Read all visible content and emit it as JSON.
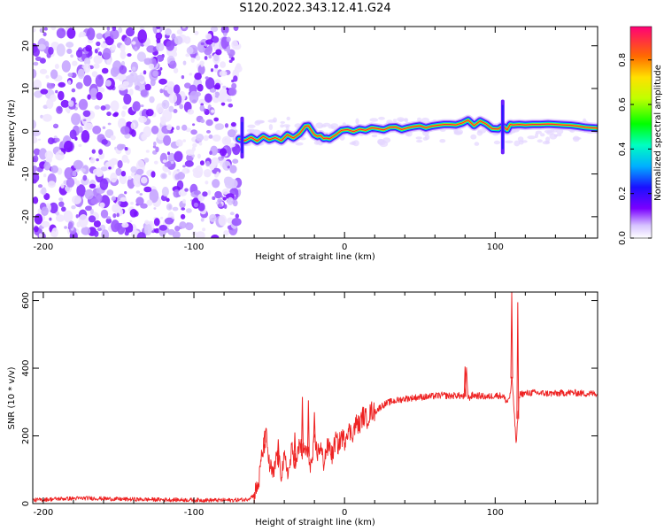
{
  "title": "S120.2022.343.12.41.G24",
  "chart_data": [
    {
      "type": "heatmap",
      "title": "S120.2022.343.12.41.G24",
      "xlabel": "Height of straight line (km)",
      "ylabel": "Frequency (Hz)",
      "xlim": [
        -207,
        168
      ],
      "ylim": [
        -25,
        24.5
      ],
      "xticks": [
        "-200",
        "-100",
        "0",
        "100"
      ],
      "xtick_values": [
        -200,
        -100,
        0,
        100
      ],
      "yticks": [
        "20",
        "10",
        "0",
        "-10",
        "-20"
      ],
      "ytick_values": [
        20,
        10,
        0,
        -10,
        -20
      ],
      "noise_region_x": [
        -207,
        -70
      ],
      "ridge": {
        "x": [
          -70,
          -66,
          -62,
          -58,
          -54,
          -50,
          -46,
          -42,
          -38,
          -34,
          -30,
          -26,
          -24,
          -22,
          -20,
          -18,
          -16,
          -14,
          -12,
          -10,
          -8,
          -6,
          -2,
          2,
          6,
          10,
          14,
          18,
          22,
          26,
          30,
          34,
          38,
          42,
          46,
          50,
          54,
          58,
          62,
          66,
          70,
          74,
          78,
          82,
          86,
          90,
          94,
          98,
          102,
          104,
          106,
          108,
          110,
          112,
          116,
          120,
          125,
          130,
          135,
          140,
          145,
          150,
          155,
          160,
          168
        ],
        "y": [
          -1.8,
          -2.2,
          -1.4,
          -2.3,
          -1.2,
          -2.0,
          -1.5,
          -2.2,
          -0.8,
          -1.6,
          -0.6,
          1.2,
          1.3,
          0.2,
          -0.8,
          -1.2,
          -1.0,
          -1.7,
          -1.6,
          -1.8,
          -1.3,
          -0.9,
          0.2,
          0.4,
          -0.1,
          0.5,
          0.2,
          0.8,
          0.6,
          0.3,
          0.9,
          1.0,
          0.4,
          0.8,
          1.1,
          1.3,
          0.8,
          1.2,
          1.4,
          1.6,
          1.6,
          1.5,
          1.9,
          2.6,
          1.3,
          2.4,
          1.7,
          0.6,
          0.5,
          1.0,
          1.0,
          0.3,
          1.6,
          1.5,
          1.6,
          1.5,
          1.6,
          1.6,
          1.7,
          1.6,
          1.5,
          1.4,
          1.2,
          0.9,
          0.7
        ],
        "peak_amplitude": 0.95
      }
    },
    {
      "type": "line",
      "xlabel": "Height of straight line (km)",
      "ylabel": "SNR (10 * v/v)",
      "xlim": [
        -207,
        168
      ],
      "ylim": [
        0,
        625
      ],
      "xticks": [
        "-200",
        "-100",
        "0",
        "100"
      ],
      "xtick_values": [
        -200,
        -100,
        0,
        100
      ],
      "yticks": [
        "600",
        "400",
        "200",
        "0"
      ],
      "ytick_values": [
        600,
        400,
        200,
        0
      ],
      "color": "#ee2222",
      "series": [
        {
          "x": [
            -207,
            -190,
            -170,
            -150,
            -130,
            -110,
            -90,
            -75,
            -65,
            -60,
            -57,
            -55,
            -52,
            -50,
            -47,
            -45,
            -42,
            -40,
            -37,
            -35,
            -32,
            -30,
            -28,
            -26,
            -24,
            -22,
            -20,
            -18,
            -16,
            -14,
            -12,
            -10,
            -8,
            -6,
            -4,
            -2,
            0,
            2,
            5,
            8,
            10,
            12,
            15,
            18,
            20,
            25,
            30,
            35,
            40,
            45,
            50,
            55,
            60,
            65,
            70,
            75,
            80,
            81,
            82,
            85,
            90,
            95,
            100,
            105,
            108,
            110,
            111,
            112,
            113,
            114,
            115,
            116,
            117,
            120,
            125,
            130,
            140,
            150,
            160,
            168
          ],
          "y": [
            10,
            14,
            16,
            13,
            12,
            11,
            10,
            10,
            12,
            25,
            60,
            140,
            200,
            115,
            80,
            150,
            90,
            130,
            90,
            160,
            110,
            180,
            150,
            160,
            140,
            110,
            180,
            150,
            170,
            120,
            160,
            170,
            140,
            190,
            170,
            200,
            185,
            220,
            205,
            240,
            230,
            260,
            250,
            275,
            270,
            290,
            300,
            305,
            310,
            312,
            315,
            315,
            318,
            320,
            318,
            320,
            315,
            400,
            310,
            320,
            318,
            315,
            320,
            318,
            300,
            320,
            370,
            320,
            240,
            175,
            250,
            320,
            325,
            325,
            328,
            326,
            325,
            328,
            325,
            325
          ]
        }
      ],
      "spikes": [
        {
          "x": -53,
          "y": 215
        },
        {
          "x": -44,
          "y": 190
        },
        {
          "x": -33,
          "y": 210
        },
        {
          "x": -28,
          "y": 315
        },
        {
          "x": -24,
          "y": 305
        },
        {
          "x": -20,
          "y": 270
        },
        {
          "x": 80,
          "y": 405
        },
        {
          "x": 111,
          "y": 625
        },
        {
          "x": 115,
          "y": 595
        }
      ]
    }
  ],
  "colorbar": {
    "label": "Normalized spectral amplitude",
    "ticks": [
      "0.0",
      "0.2",
      "0.4",
      "0.6",
      "0.8"
    ],
    "tick_values": [
      0,
      0.2,
      0.4,
      0.6,
      0.8
    ],
    "range": [
      0,
      0.95
    ]
  }
}
